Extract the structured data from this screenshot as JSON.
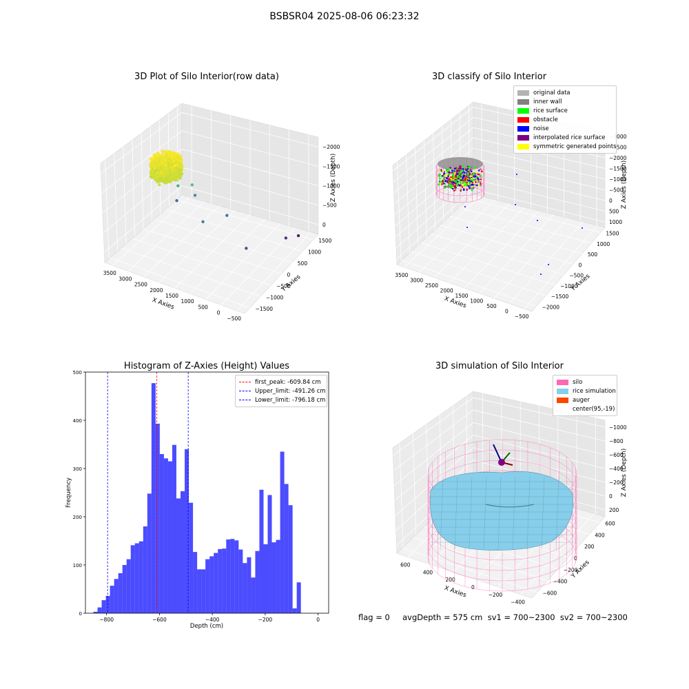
{
  "figure": {
    "title": "BSBSR04 2025-08-06 06:23:32",
    "footer": "flag = 0     avgDepth = 575 cm  sv1 = 700~2300  sv2 = 700~2300"
  },
  "chart_data": [
    {
      "id": "raw",
      "type": "scatter",
      "title": "3D Plot of Silo Interior(row data)",
      "xlabel": "X Axies",
      "ylabel": "Y Axies",
      "zlabel": "Z Axies (Depth)",
      "x_ticks": [
        "−500",
        "0",
        "500",
        "1000",
        "1500",
        "2000",
        "2500",
        "3000",
        "3500"
      ],
      "y_ticks": [
        "−1500",
        "−1000",
        "−500",
        "0",
        "500",
        "1000",
        "1500"
      ],
      "z_ticks": [
        "−2000",
        "−1500",
        "−1000",
        "−500",
        "0"
      ],
      "xlim": [
        -600,
        3600
      ],
      "ylim": [
        -1600,
        1600
      ],
      "zlim": [
        -2300,
        100
      ],
      "colormap": "viridis (by depth)",
      "cluster": {
        "x_range": [
          -300,
          500
        ],
        "y_range": [
          -400,
          400
        ],
        "z_range": [
          -900,
          -500
        ]
      },
      "outliers": [
        {
          "x": 200,
          "y": -300,
          "z": -1600
        },
        {
          "x": 600,
          "y": 200,
          "z": -900
        },
        {
          "x": 900,
          "y": -100,
          "z": -1200
        },
        {
          "x": 1100,
          "y": 300,
          "z": -700
        },
        {
          "x": 1500,
          "y": 400,
          "z": -1400
        },
        {
          "x": 1800,
          "y": -200,
          "z": -1500
        },
        {
          "x": 2600,
          "y": 100,
          "z": -1900
        },
        {
          "x": 3100,
          "y": -900,
          "z": -2100
        },
        {
          "x": 3200,
          "y": -1300,
          "z": -2250
        }
      ]
    },
    {
      "id": "classify",
      "type": "scatter",
      "title": "3D classify of Silo Interior",
      "xlabel": "X Axies",
      "ylabel": "Y Axies",
      "zlabel": "Z Axies (Depth)",
      "x_ticks": [
        "−500",
        "0",
        "500",
        "1000",
        "1500",
        "2000",
        "2500",
        "3000",
        "3500"
      ],
      "y_ticks": [
        "−2000",
        "−1500",
        "−1000",
        "−500",
        "0",
        "500",
        "1000",
        "1500"
      ],
      "z_ticks": [
        "−3000",
        "−2500",
        "−2000",
        "−1500",
        "−1000",
        "−500",
        "0",
        "500",
        "1000"
      ],
      "xlim": [
        -600,
        3600
      ],
      "ylim": [
        -2100,
        1700
      ],
      "zlim": [
        -3100,
        1100
      ],
      "legend": [
        {
          "label": "original data",
          "color": "#b3b3b3"
        },
        {
          "label": "inner wall",
          "color": "#808080"
        },
        {
          "label": "rice surface",
          "color": "#00ff00"
        },
        {
          "label": "obstacle",
          "color": "#ff0000"
        },
        {
          "label": "noise",
          "color": "#0000ff"
        },
        {
          "label": "interpolated rice surface",
          "color": "#800080"
        },
        {
          "label": "symmetric generated points",
          "color": "#ffff00"
        }
      ]
    },
    {
      "id": "histogram",
      "type": "bar",
      "title": "Histogram of Z-Axies (Height) Values",
      "xlabel": "Depth (cm)",
      "ylabel": "Frequency",
      "xlim": [
        -880,
        40
      ],
      "ylim": [
        0,
        500
      ],
      "x_ticks": [
        -800,
        -600,
        -400,
        -200,
        0
      ],
      "y_ticks": [
        0,
        100,
        200,
        300,
        400,
        500
      ],
      "bin_width": 15.7,
      "bin_start": -850,
      "values": [
        3,
        12,
        27,
        36,
        57,
        71,
        83,
        100,
        112,
        141,
        145,
        149,
        180,
        248,
        477,
        393,
        330,
        321,
        315,
        349,
        238,
        253,
        340,
        229,
        127,
        91,
        91,
        112,
        118,
        125,
        133,
        134,
        153,
        154,
        151,
        132,
        104,
        116,
        74,
        129,
        256,
        143,
        245,
        147,
        152,
        335,
        268,
        224,
        10,
        64
      ],
      "bar_color": "#0000ff",
      "vlines": [
        {
          "x": -609.84,
          "color": "#ff0000",
          "label": "first_peak: -609.84 cm"
        },
        {
          "x": -491.26,
          "color": "#0000ff",
          "label": "Upper_limit: -491.26 cm"
        },
        {
          "x": -796.18,
          "color": "#0000ff",
          "label": "Lower_limit: -796.18 cm"
        }
      ]
    },
    {
      "id": "simulation",
      "type": "surface",
      "title": "3D simulation of Silo Interior",
      "xlabel": "X Axies",
      "ylabel": "Y Axies",
      "zlabel": "Z Axies (Depth)",
      "x_ticks": [
        "−400",
        "−200",
        "0",
        "200",
        "400",
        "600"
      ],
      "y_ticks": [
        "−600",
        "−400",
        "−200",
        "0",
        "200",
        "400",
        "600"
      ],
      "z_ticks": [
        "−1000",
        "−800",
        "−600",
        "−400",
        "−200",
        "0",
        "200"
      ],
      "xlim": [
        -550,
        750
      ],
      "ylim": [
        -700,
        700
      ],
      "zlim": [
        -1100,
        300
      ],
      "legend": [
        {
          "label": "silo",
          "color": "#ff69b4"
        },
        {
          "label": "rice simulation",
          "color": "#87ceeb"
        },
        {
          "label": "auger",
          "color": "#ff4500"
        },
        {
          "label": "center(95,-19)",
          "color": ""
        }
      ]
    }
  ]
}
